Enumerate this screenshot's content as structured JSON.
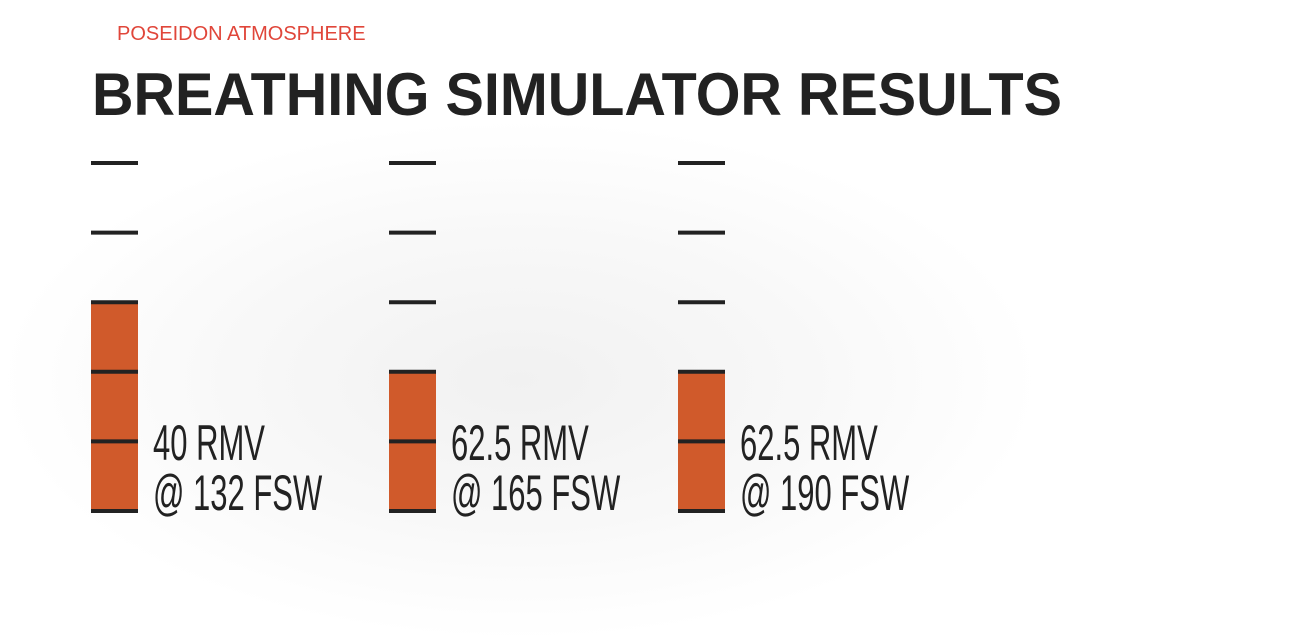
{
  "header": {
    "subtitle": "POSEIDON ATMOSPHERE",
    "title": "BREATHING SIMULATOR RESULTS"
  },
  "gauges": [
    {
      "rmv": "40 RMV",
      "depth": "@ 132 FSW",
      "filled_segments": 3
    },
    {
      "rmv": "62.5 RMV",
      "depth": "@ 165 FSW",
      "filled_segments": 2
    },
    {
      "rmv": "62.5 RMV",
      "depth": "@ 190 FSW",
      "filled_segments": 2
    }
  ]
}
